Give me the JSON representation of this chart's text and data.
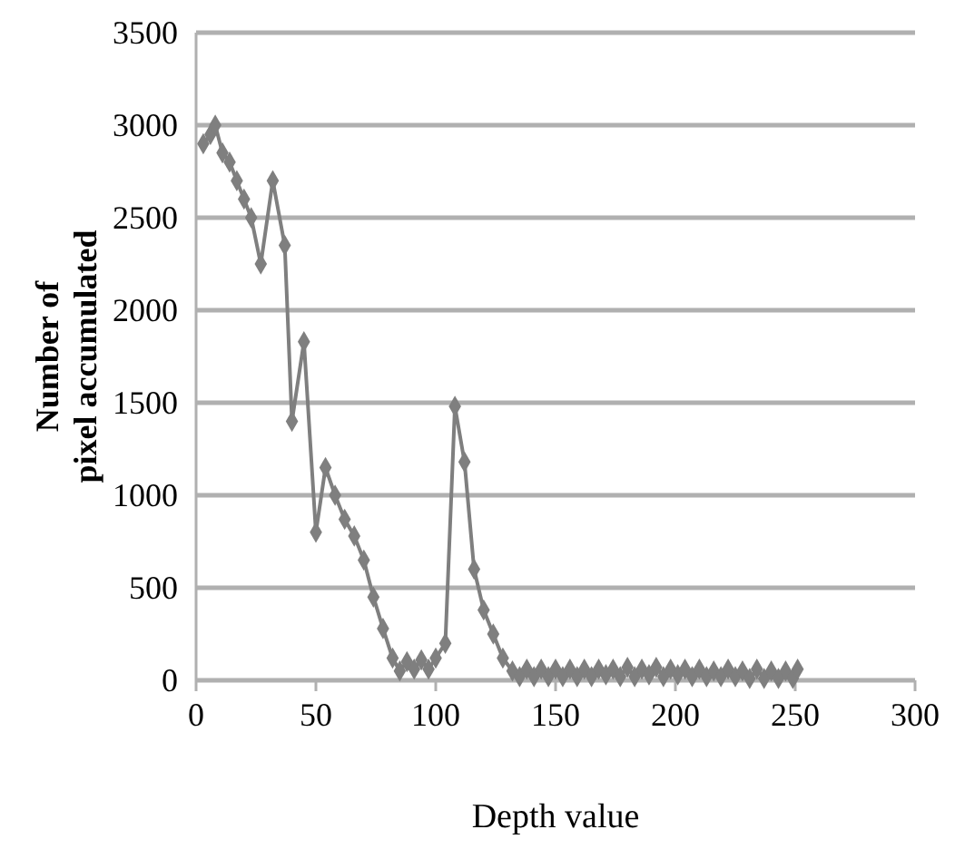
{
  "chart_data": {
    "type": "line",
    "xlabel": "Depth value",
    "ylabel": "Number of pixel accumulated",
    "xlim": [
      0,
      300
    ],
    "xticks": [
      0,
      50,
      100,
      150,
      200,
      250,
      300
    ],
    "ylim": [
      0,
      3500
    ],
    "yticks": [
      0,
      500,
      1000,
      1500,
      2000,
      2500,
      3000,
      3500
    ],
    "grid": "y",
    "marker": "diamond",
    "line_style": "solid",
    "series": [
      {
        "color": "#7f7f7f",
        "x": [
          3,
          6,
          8,
          11,
          14,
          17,
          20,
          23,
          27,
          32,
          37,
          40,
          45,
          50,
          54,
          58,
          62,
          66,
          70,
          74,
          78,
          82,
          85,
          88,
          91,
          94,
          97,
          100,
          104,
          108,
          112,
          116,
          120,
          124,
          128,
          132,
          135,
          138,
          141,
          144,
          147,
          150,
          153,
          156,
          159,
          162,
          165,
          168,
          171,
          174,
          177,
          180,
          183,
          186,
          189,
          192,
          195,
          198,
          201,
          204,
          207,
          210,
          213,
          216,
          219,
          222,
          225,
          228,
          231,
          234,
          237,
          240,
          243,
          246,
          249,
          251
        ],
        "values": [
          2900,
          2950,
          3000,
          2850,
          2800,
          2700,
          2600,
          2500,
          2250,
          2700,
          2350,
          1400,
          1830,
          800,
          1150,
          1000,
          870,
          780,
          650,
          450,
          280,
          120,
          50,
          100,
          60,
          110,
          60,
          120,
          200,
          1480,
          1180,
          600,
          380,
          250,
          120,
          50,
          20,
          60,
          20,
          60,
          20,
          60,
          20,
          60,
          20,
          60,
          20,
          60,
          30,
          60,
          20,
          70,
          20,
          60,
          30,
          70,
          20,
          60,
          30,
          60,
          20,
          60,
          20,
          50,
          20,
          60,
          20,
          50,
          10,
          60,
          10,
          50,
          10,
          50,
          10,
          60
        ]
      }
    ]
  }
}
